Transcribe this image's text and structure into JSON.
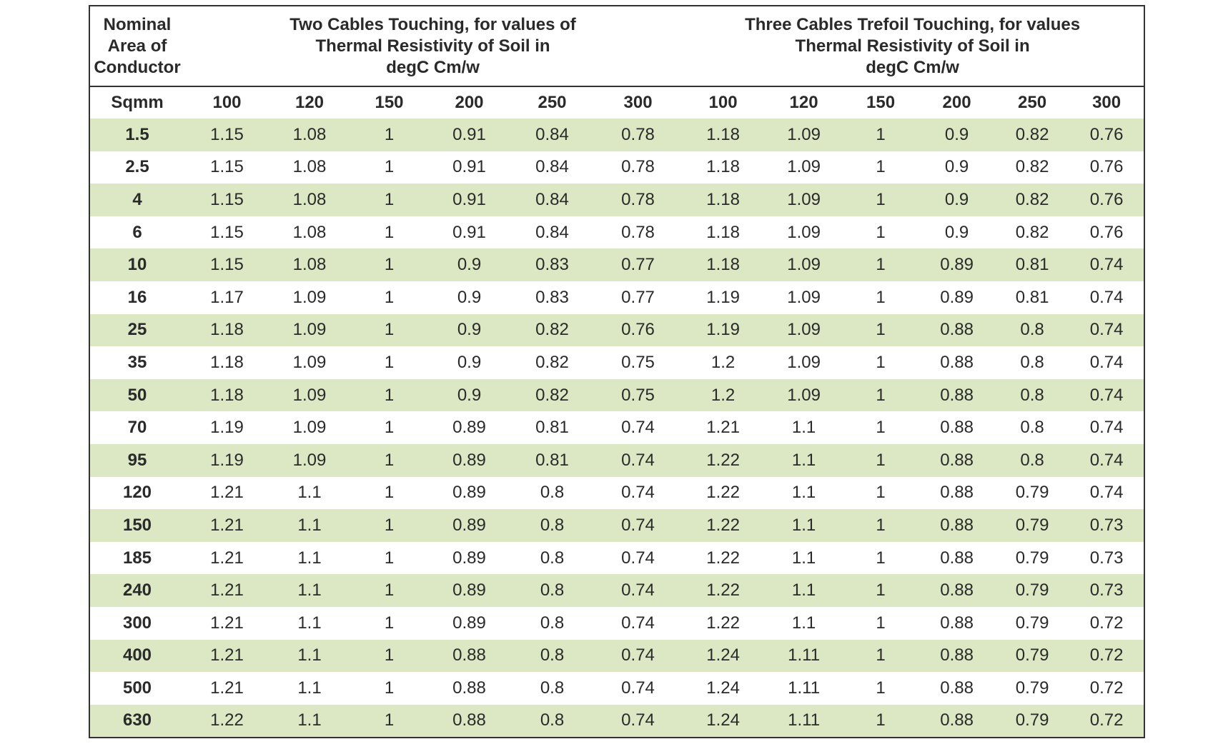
{
  "table": {
    "header_groups": [
      [
        "Nominal",
        "Area of",
        "Conductor"
      ],
      [
        "Two Cables Touching, for values of",
        "Thermal Resistivity of Soil in",
        "degC Cm/w"
      ],
      [
        "Three Cables Trefoil Touching, for values",
        "Thermal Resistivity of Soil in",
        "degC Cm/w"
      ]
    ],
    "columns": [
      "Sqmm",
      "100",
      "120",
      "150",
      "200",
      "250",
      "300",
      "100",
      "120",
      "150",
      "200",
      "250",
      "300"
    ],
    "rows": [
      [
        "1.5",
        "1.15",
        "1.08",
        "1",
        "0.91",
        "0.84",
        "0.78",
        "1.18",
        "1.09",
        "1",
        "0.9",
        "0.82",
        "0.76"
      ],
      [
        "2.5",
        "1.15",
        "1.08",
        "1",
        "0.91",
        "0.84",
        "0.78",
        "1.18",
        "1.09",
        "1",
        "0.9",
        "0.82",
        "0.76"
      ],
      [
        "4",
        "1.15",
        "1.08",
        "1",
        "0.91",
        "0.84",
        "0.78",
        "1.18",
        "1.09",
        "1",
        "0.9",
        "0.82",
        "0.76"
      ],
      [
        "6",
        "1.15",
        "1.08",
        "1",
        "0.91",
        "0.84",
        "0.78",
        "1.18",
        "1.09",
        "1",
        "0.9",
        "0.82",
        "0.76"
      ],
      [
        "10",
        "1.15",
        "1.08",
        "1",
        "0.9",
        "0.83",
        "0.77",
        "1.18",
        "1.09",
        "1",
        "0.89",
        "0.81",
        "0.74"
      ],
      [
        "16",
        "1.17",
        "1.09",
        "1",
        "0.9",
        "0.83",
        "0.77",
        "1.19",
        "1.09",
        "1",
        "0.89",
        "0.81",
        "0.74"
      ],
      [
        "25",
        "1.18",
        "1.09",
        "1",
        "0.9",
        "0.82",
        "0.76",
        "1.19",
        "1.09",
        "1",
        "0.88",
        "0.8",
        "0.74"
      ],
      [
        "35",
        "1.18",
        "1.09",
        "1",
        "0.9",
        "0.82",
        "0.75",
        "1.2",
        "1.09",
        "1",
        "0.88",
        "0.8",
        "0.74"
      ],
      [
        "50",
        "1.18",
        "1.09",
        "1",
        "0.9",
        "0.82",
        "0.75",
        "1.2",
        "1.09",
        "1",
        "0.88",
        "0.8",
        "0.74"
      ],
      [
        "70",
        "1.19",
        "1.09",
        "1",
        "0.89",
        "0.81",
        "0.74",
        "1.21",
        "1.1",
        "1",
        "0.88",
        "0.8",
        "0.74"
      ],
      [
        "95",
        "1.19",
        "1.09",
        "1",
        "0.89",
        "0.81",
        "0.74",
        "1.22",
        "1.1",
        "1",
        "0.88",
        "0.8",
        "0.74"
      ],
      [
        "120",
        "1.21",
        "1.1",
        "1",
        "0.89",
        "0.8",
        "0.74",
        "1.22",
        "1.1",
        "1",
        "0.88",
        "0.79",
        "0.74"
      ],
      [
        "150",
        "1.21",
        "1.1",
        "1",
        "0.89",
        "0.8",
        "0.74",
        "1.22",
        "1.1",
        "1",
        "0.88",
        "0.79",
        "0.73"
      ],
      [
        "185",
        "1.21",
        "1.1",
        "1",
        "0.89",
        "0.8",
        "0.74",
        "1.22",
        "1.1",
        "1",
        "0.88",
        "0.79",
        "0.73"
      ],
      [
        "240",
        "1.21",
        "1.1",
        "1",
        "0.89",
        "0.8",
        "0.74",
        "1.22",
        "1.1",
        "1",
        "0.88",
        "0.79",
        "0.73"
      ],
      [
        "300",
        "1.21",
        "1.1",
        "1",
        "0.89",
        "0.8",
        "0.74",
        "1.22",
        "1.1",
        "1",
        "0.88",
        "0.79",
        "0.72"
      ],
      [
        "400",
        "1.21",
        "1.1",
        "1",
        "0.88",
        "0.8",
        "0.74",
        "1.24",
        "1.11",
        "1",
        "0.88",
        "0.79",
        "0.72"
      ],
      [
        "500",
        "1.21",
        "1.1",
        "1",
        "0.88",
        "0.8",
        "0.74",
        "1.24",
        "1.11",
        "1",
        "0.88",
        "0.79",
        "0.72"
      ],
      [
        "630",
        "1.22",
        "1.1",
        "1",
        "0.88",
        "0.8",
        "0.74",
        "1.24",
        "1.11",
        "1",
        "0.88",
        "0.79",
        "0.72"
      ]
    ]
  }
}
